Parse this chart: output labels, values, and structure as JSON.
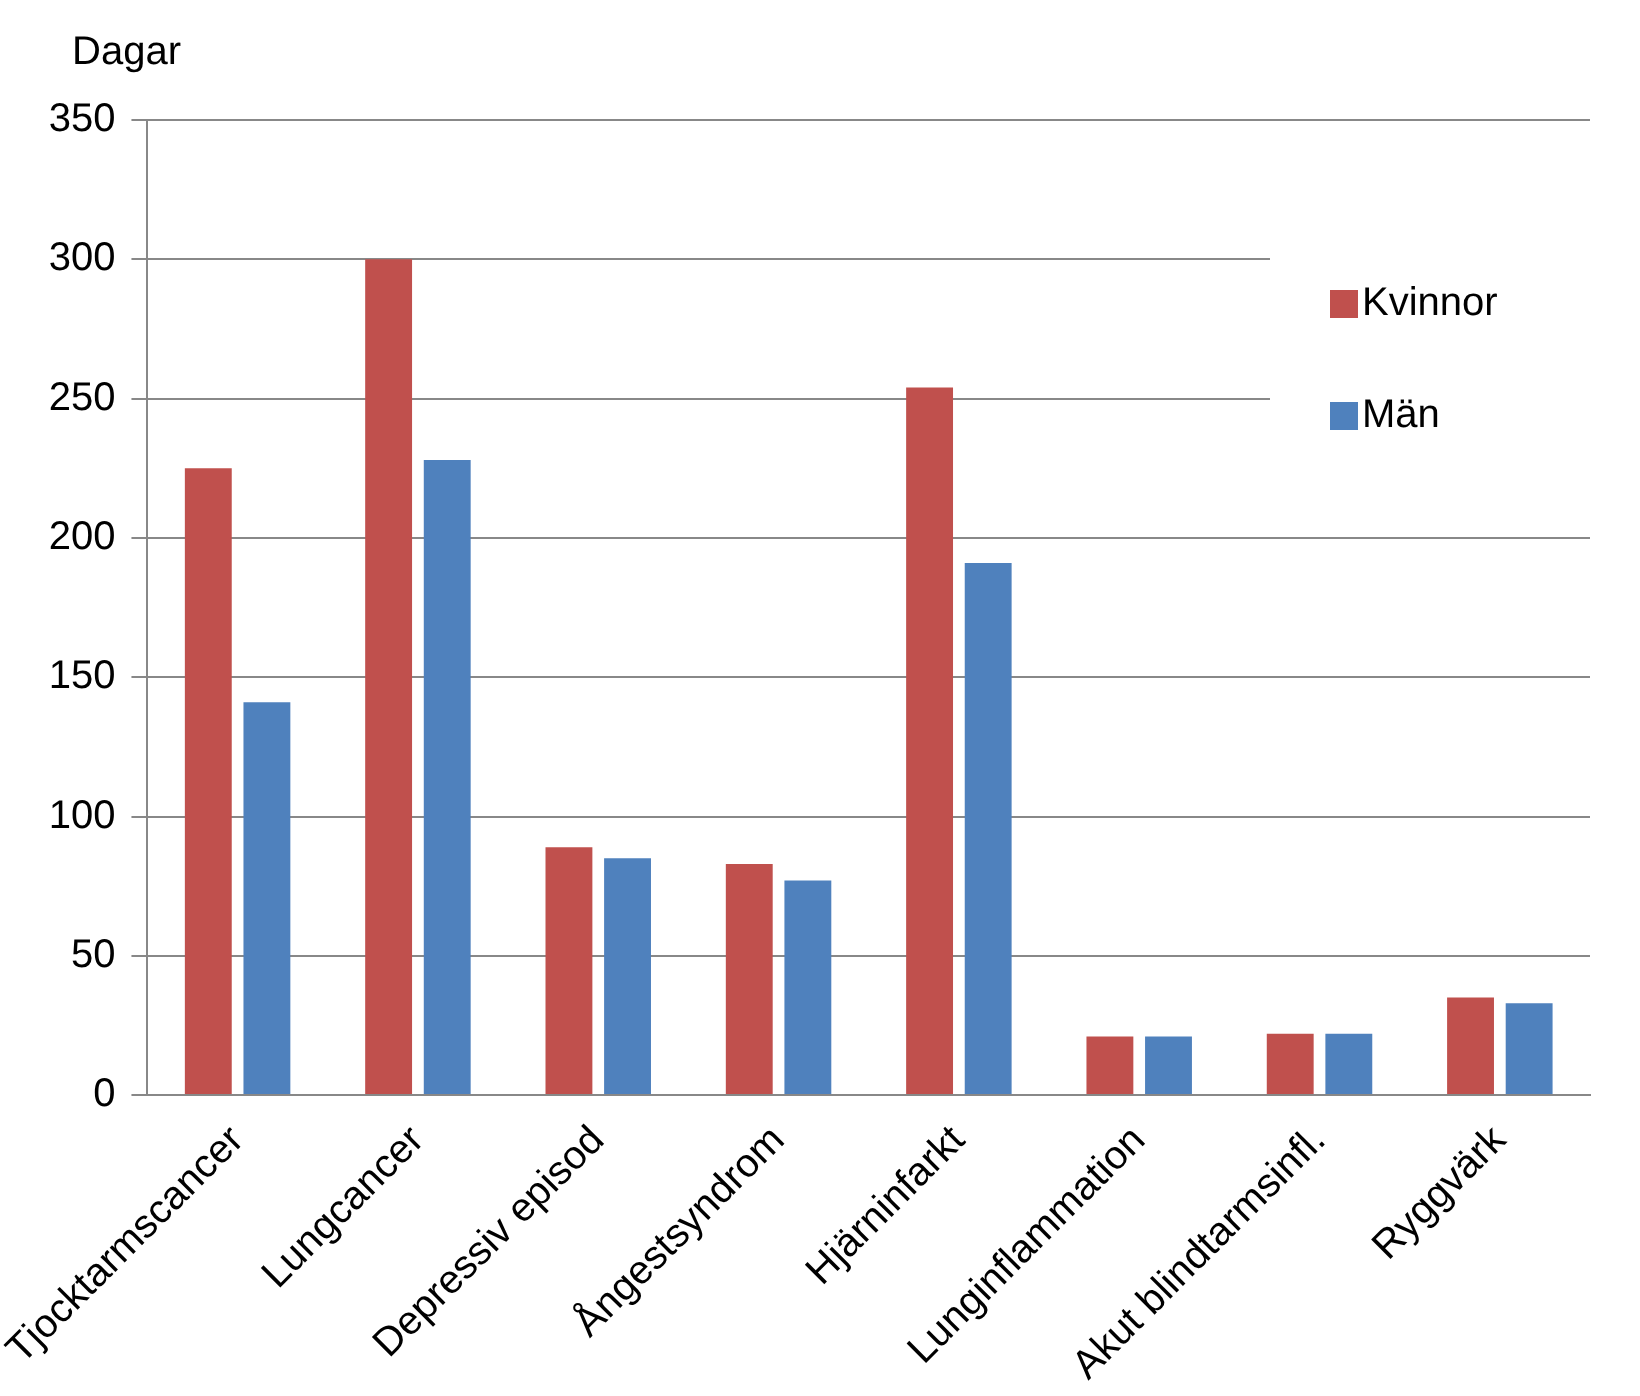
{
  "chart_data": {
    "type": "bar",
    "ylabel": "Dagar",
    "categories": [
      "Tjocktarmscancer",
      "Lungcancer",
      "Depressiv episod",
      "Ångestsyndrom",
      "Hjärninfarkt",
      "Lunginflammation",
      "Akut blindtarmsinfl.",
      "Ryggvärk"
    ],
    "series": [
      {
        "name": "Kvinnor",
        "color": "#c0504d",
        "values": [
          225,
          300,
          89,
          83,
          254,
          21,
          22,
          35
        ]
      },
      {
        "name": "Män",
        "color": "#4f81bd",
        "values": [
          141,
          228,
          85,
          77,
          191,
          21,
          22,
          33
        ]
      }
    ],
    "ylim": [
      0,
      350
    ],
    "yticks": [
      0,
      50,
      100,
      150,
      200,
      250,
      300,
      350
    ],
    "grid": "y",
    "legend": "top right"
  }
}
